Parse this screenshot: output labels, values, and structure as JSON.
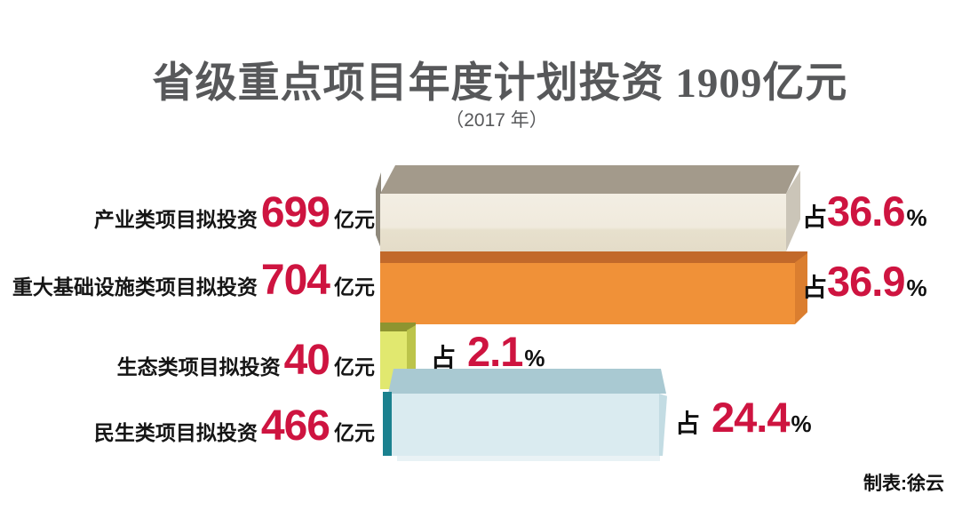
{
  "header": {
    "title": "省级重点项目年度计划投资 1909亿元",
    "subtitle": "（2017 年）"
  },
  "footer": {
    "credit": "制表:徐云"
  },
  "colors": {
    "accent_red": "#ce1440",
    "title_gray": "#57585a",
    "label_black": "#111111",
    "bar_industry_front": "#f2ede2",
    "bar_industry_top": "#a39a8b",
    "bar_infrastructure_front": "#f09138",
    "bar_infrastructure_top": "#c2692a",
    "bar_ecology_front": "#e1e86f",
    "bar_ecology_top": "#8e9430",
    "bar_livelihood_front": "#daebf0",
    "bar_livelihood_top": "#a9c9d2",
    "bar_livelihood_edge": "#1b818f"
  },
  "rows": [
    {
      "label": "产业类项目拟投资",
      "value": "699",
      "unit": "亿元",
      "share_prefix": "占",
      "share": "36.6",
      "share_suffix": "%"
    },
    {
      "label": "重大基础设施类项目拟投资",
      "value": "704",
      "unit": "亿元",
      "share_prefix": "占",
      "share": "36.9",
      "share_suffix": "%"
    },
    {
      "label": "生态类项目拟投资",
      "value": "40",
      "unit": "亿元",
      "share_prefix": "占",
      "share": "2.1",
      "share_suffix": "%"
    },
    {
      "label": "民生类项目拟投资",
      "value": "466",
      "unit": "亿元",
      "share_prefix": "占",
      "share": "24.4",
      "share_suffix": "%"
    }
  ],
  "chart_data": {
    "type": "bar",
    "orientation": "horizontal",
    "title": "省级重点项目年度计划投资 1909亿元",
    "subtitle": "（2017 年）",
    "year": 2017,
    "unit": "亿元",
    "total_value": 1909,
    "categories": [
      "产业类项目拟投资",
      "重大基础设施类项目拟投资",
      "生态类项目拟投资",
      "民生类项目拟投资"
    ],
    "values": [
      699,
      704,
      40,
      466
    ],
    "percentages": [
      36.6,
      36.9,
      2.1,
      24.4
    ],
    "bar_colors": [
      "#f2ede2",
      "#f09138",
      "#e1e86f",
      "#daebf0"
    ],
    "legend": "none",
    "grid": false,
    "credit": "制表:徐云"
  }
}
